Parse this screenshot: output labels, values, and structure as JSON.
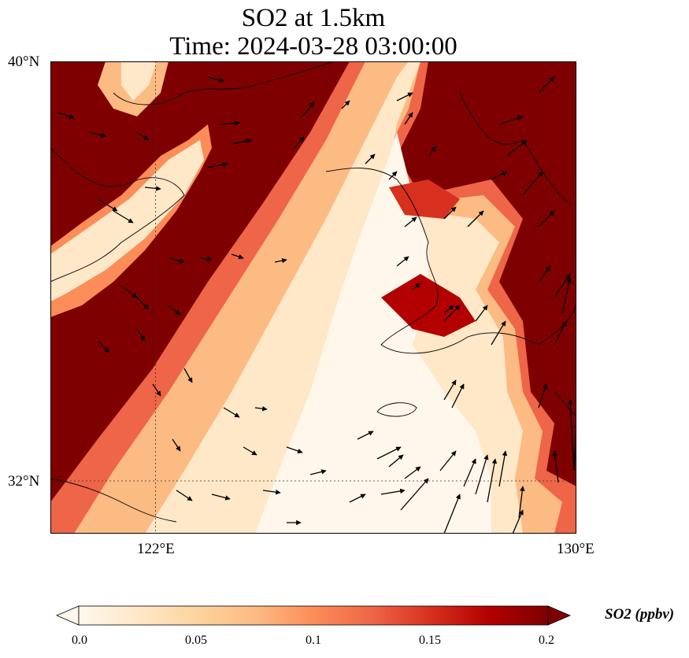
{
  "title": {
    "line1": "SO2 at 1.5km",
    "line2": "Time: 2024-03-28 03:00:00"
  },
  "map": {
    "extent": {
      "lon_min": 120,
      "lon_max": 130,
      "lat_min": 31,
      "lat_max": 40
    },
    "lat_ticks": [
      {
        "label": "40°N",
        "value": 40
      },
      {
        "label": "32°N",
        "value": 32
      }
    ],
    "lon_ticks": [
      {
        "label": "122°E",
        "value": 122
      },
      {
        "label": "130°E",
        "value": 130
      }
    ],
    "gridlines": {
      "lons": [
        122
      ],
      "lats": [
        32
      ],
      "style": "dotted"
    },
    "field": {
      "variable": "SO2",
      "units": "ppbv",
      "pattern": "Diagonal high-concentration band from SW to the NW corner, clean low-concentration band across the Yellow Sea toward Korea, high values over the East Sea / eastern edge"
    },
    "wind_vectors": "Wind arrows pointing mostly north-east over the sea, east to south-east over the western high band"
  },
  "colorbar": {
    "label": "SO2 (ppbv)",
    "min": 0.0,
    "max": 0.2,
    "ticks": [
      "0.0",
      "0.05",
      "0.1",
      "0.15",
      "0.2"
    ],
    "colormap": "OrRd",
    "extend": "both",
    "stops": [
      "#fff7ec",
      "#fee8c8",
      "#fdd49e",
      "#fdbb84",
      "#fc8d59",
      "#ef6548",
      "#d7301f",
      "#b30000",
      "#7f0000"
    ]
  }
}
